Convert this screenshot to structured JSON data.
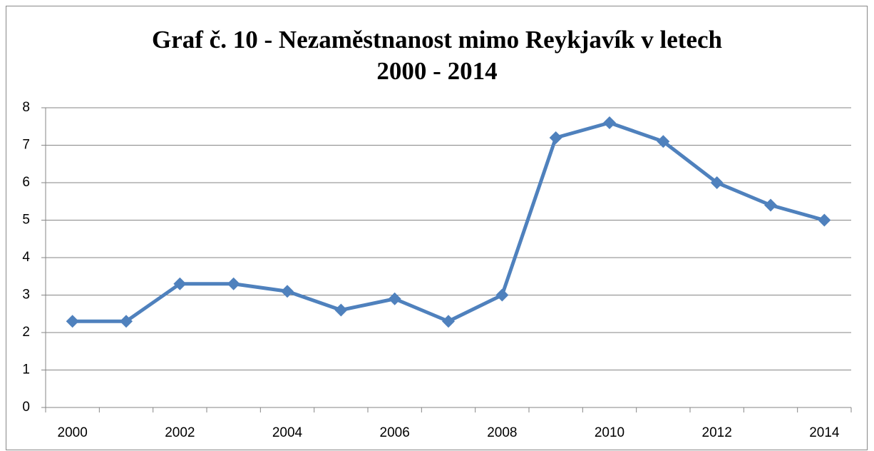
{
  "chart_data": {
    "type": "line",
    "title": "Graf č. 10 - Nezaměstnanost mimo Reykjavík v letech 2000 - 2014",
    "categories": [
      "2000",
      null,
      "2002",
      null,
      "2004",
      null,
      "2006",
      null,
      "2008",
      null,
      "2010",
      null,
      "2012",
      null,
      "2014"
    ],
    "values": [
      2.3,
      2.3,
      3.3,
      3.3,
      3.1,
      2.6,
      2.9,
      2.3,
      3.0,
      7.2,
      7.6,
      7.1,
      6.0,
      5.4,
      5.0
    ],
    "color": "#4f81bd",
    "ylim": [
      0,
      8
    ],
    "yticks": [
      0,
      1,
      2,
      3,
      4,
      5,
      6,
      7,
      8
    ],
    "grid": true
  }
}
